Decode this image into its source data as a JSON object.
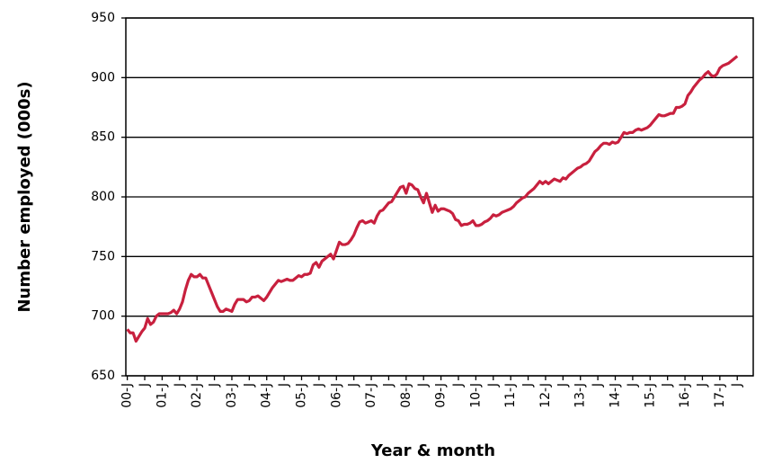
{
  "chart_data": {
    "type": "line",
    "y_label": "Number employed (000s)",
    "x_label": "Year & month",
    "categories": [
      "00-J",
      null,
      null,
      null,
      null,
      null,
      "J",
      null,
      null,
      null,
      null,
      null,
      "01-J",
      null,
      null,
      null,
      null,
      null,
      "J",
      null,
      null,
      null,
      null,
      null,
      "02-J",
      null,
      null,
      null,
      null,
      null,
      "J",
      null,
      null,
      null,
      null,
      null,
      "03-J",
      null,
      null,
      null,
      null,
      null,
      "J",
      null,
      null,
      null,
      null,
      null,
      "04-J",
      null,
      null,
      null,
      null,
      null,
      "J",
      null,
      null,
      null,
      null,
      null,
      "05-J",
      null,
      null,
      null,
      null,
      null,
      "J",
      null,
      null,
      null,
      null,
      null,
      "06-J",
      null,
      null,
      null,
      null,
      null,
      "J",
      null,
      null,
      null,
      null,
      null,
      "07-J",
      null,
      null,
      null,
      null,
      null,
      "J",
      null,
      null,
      null,
      null,
      null,
      "08-J",
      null,
      null,
      null,
      null,
      null,
      "J",
      null,
      null,
      null,
      null,
      null,
      "09-J",
      null,
      null,
      null,
      null,
      null,
      "J",
      null,
      null,
      null,
      null,
      null,
      "10-J",
      null,
      null,
      null,
      null,
      null,
      "J",
      null,
      null,
      null,
      null,
      null,
      "11-J",
      null,
      null,
      null,
      null,
      null,
      "J",
      null,
      null,
      null,
      null,
      null,
      "12-J",
      null,
      null,
      null,
      null,
      null,
      "J",
      null,
      null,
      null,
      null,
      null,
      "13-J",
      null,
      null,
      null,
      null,
      null,
      "J",
      null,
      null,
      null,
      null,
      null,
      "14-J",
      null,
      null,
      null,
      null,
      null,
      "J",
      null,
      null,
      null,
      null,
      null,
      "15-J",
      null,
      null,
      null,
      null,
      null,
      "J",
      null,
      null,
      null,
      null,
      null,
      "16-J",
      null,
      null,
      null,
      null,
      null,
      "J",
      null,
      null,
      null,
      null,
      null,
      "17-J",
      null,
      null,
      null,
      null,
      null,
      "J",
      null,
      null,
      null,
      null,
      null
    ],
    "series": [
      {
        "color": "#c8203e",
        "values": [
          689,
          686,
          686,
          679,
          683,
          687,
          690,
          698,
          693,
          695,
          700,
          702,
          702,
          702,
          702,
          703,
          705,
          702,
          706,
          712,
          722,
          730,
          735,
          733,
          733,
          735,
          732,
          732,
          726,
          720,
          714,
          708,
          704,
          704,
          706,
          705,
          704,
          710,
          714,
          714,
          714,
          712,
          713,
          716,
          716,
          717,
          715,
          713,
          716,
          720,
          724,
          727,
          730,
          729,
          730,
          731,
          730,
          730,
          732,
          734,
          733,
          735,
          735,
          736,
          743,
          745,
          741,
          746,
          748,
          750,
          752,
          748,
          755,
          762,
          760,
          760,
          761,
          764,
          768,
          774,
          779,
          780,
          778,
          779,
          780,
          778,
          784,
          788,
          789,
          792,
          795,
          796,
          800,
          804,
          808,
          809,
          803,
          811,
          810,
          807,
          806,
          800,
          795,
          803,
          795,
          787,
          793,
          788,
          790,
          790,
          789,
          788,
          786,
          781,
          780,
          776,
          777,
          777,
          778,
          780,
          776,
          776,
          777,
          779,
          780,
          782,
          785,
          784,
          785,
          787,
          788,
          789,
          790,
          792,
          795,
          797,
          799,
          800,
          803,
          805,
          807,
          810,
          813,
          811,
          813,
          811,
          813,
          815,
          814,
          813,
          816,
          815,
          818,
          820,
          822,
          824,
          825,
          827,
          828,
          830,
          834,
          838,
          840,
          843,
          845,
          845,
          844,
          846,
          845,
          846,
          850,
          854,
          853,
          854,
          854,
          856,
          857,
          856,
          857,
          858,
          860,
          863,
          866,
          869,
          868,
          868,
          869,
          870,
          870,
          875,
          875,
          876,
          878,
          885,
          888,
          892,
          895,
          898,
          900,
          903,
          905,
          902,
          901,
          903,
          908,
          910,
          911,
          912,
          914,
          916,
          918,
          null,
          null,
          null,
          null,
          null
        ]
      }
    ],
    "ylim": [
      650,
      950
    ],
    "yticks": [
      650,
      700,
      750,
      800,
      850,
      900,
      950
    ],
    "grid": true
  }
}
